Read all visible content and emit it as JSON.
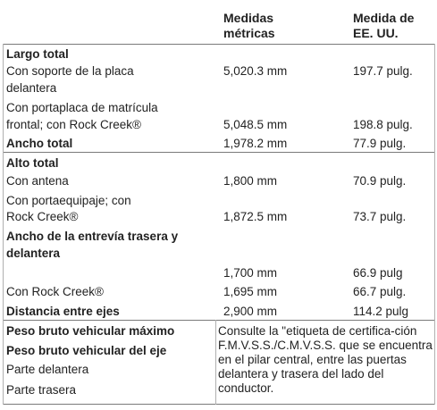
{
  "header": {
    "metric": [
      "Medidas",
      "métricas"
    ],
    "us": [
      "Medida de",
      "EE. UU."
    ]
  },
  "rows": [
    {
      "label": [
        "Largo total"
      ],
      "bold": true
    },
    {
      "label": [
        "Con soporte de la placa",
        "delantera"
      ],
      "metric": "5,020.3 mm",
      "us": "197.7 pulg."
    },
    {
      "label": [
        "Con portaplaca de matrícula",
        "frontal; con Rock Creek®"
      ],
      "metric": "5,048.5 mm",
      "us": "198.8 pulg."
    },
    {
      "label": [
        "Ancho total"
      ],
      "bold": true,
      "metric": "1,978.2 mm",
      "us": "77.9 pulg."
    },
    {
      "label": [
        "Alto total"
      ],
      "bold": true
    },
    {
      "label": [
        "Con antena"
      ],
      "metric": "1,800 mm",
      "us": "70.9 pulg."
    },
    {
      "label": [
        "Con portaequipaje; con",
        "Rock Creek®"
      ],
      "metric": "1,872.5 mm",
      "us": "73.7 pulg."
    },
    {
      "label": [
        "Ancho de la entrevía trasera y",
        "delantera"
      ],
      "bold": true
    },
    {
      "label": [
        ""
      ],
      "metric": "1,700 mm",
      "us": "66.9 pulg"
    },
    {
      "label": [
        "Con Rock Creek®"
      ],
      "metric": "1,695 mm",
      "us": "66.7 pulg."
    },
    {
      "label": [
        "Distancia entre ejes"
      ],
      "bold": true,
      "metric": "2,900 mm",
      "us": "114.2 pulg"
    },
    {
      "label": [
        "Peso bruto vehicular máximo"
      ],
      "bold": true
    },
    {
      "label": [
        "Peso bruto vehicular del eje"
      ],
      "bold": true
    },
    {
      "label": [
        "Parte delantera"
      ]
    },
    {
      "label": [
        "Parte trasera"
      ]
    }
  ],
  "note": "Consulte la \"etiqueta de certifica-ción F.M.V.S.S./C.M.V.S.S. que se encuentra en el pilar central, entre las puertas delantera y trasera del lado del conductor."
}
